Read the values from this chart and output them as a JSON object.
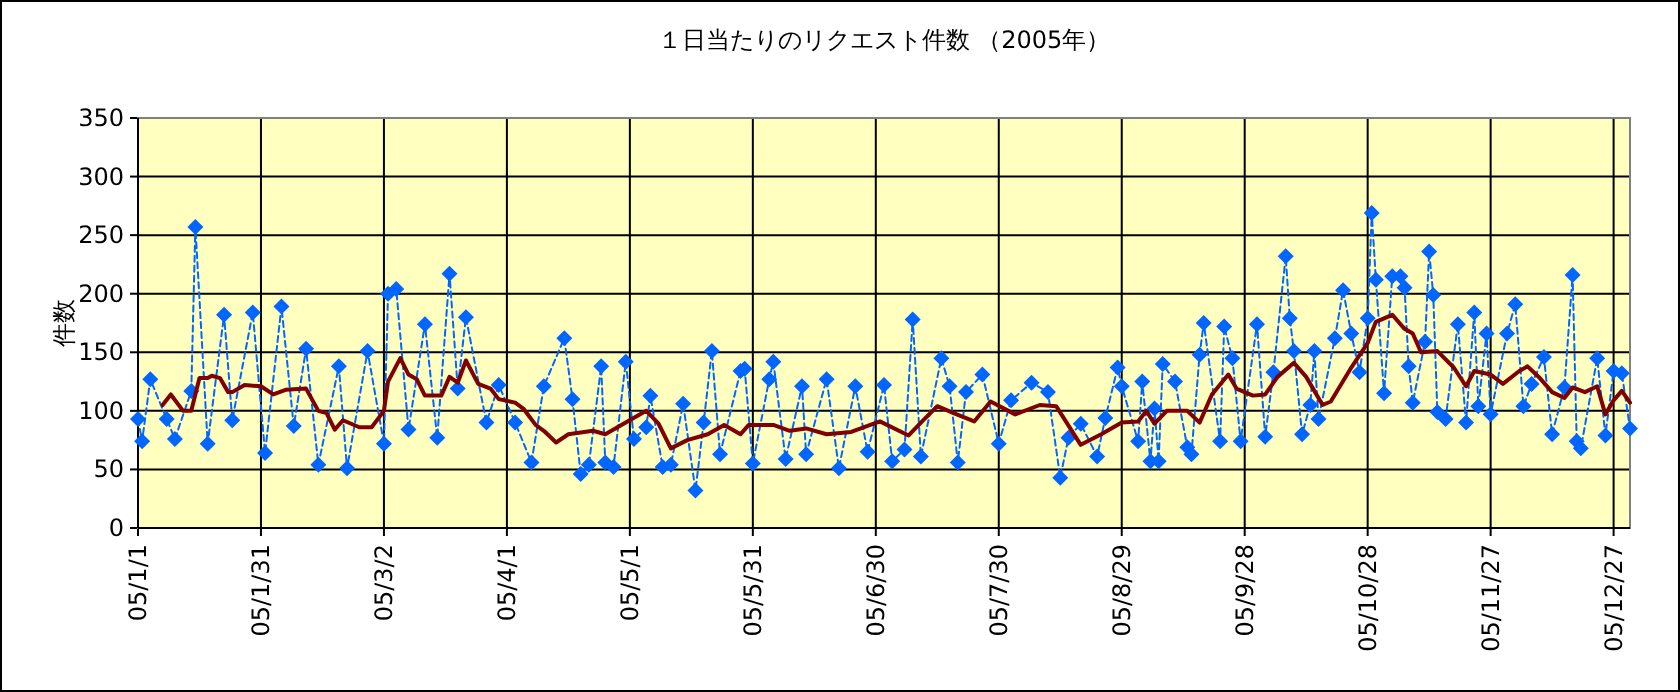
{
  "chart_data": {
    "type": "line",
    "title": "１日当たりのリクエスト件数 （2005年）",
    "ylabel": "件数",
    "xlim": [
      "2005-01-01",
      "2005-12-31"
    ],
    "xticks": [
      {
        "value": "2005-01-01",
        "label": "05/1/1"
      },
      {
        "value": "2005-01-31",
        "label": "05/1/31"
      },
      {
        "value": "2005-03-02",
        "label": "05/3/2"
      },
      {
        "value": "2005-04-01",
        "label": "05/4/1"
      },
      {
        "value": "2005-05-01",
        "label": "05/5/1"
      },
      {
        "value": "2005-05-31",
        "label": "05/5/31"
      },
      {
        "value": "2005-06-30",
        "label": "05/6/30"
      },
      {
        "value": "2005-07-30",
        "label": "05/7/30"
      },
      {
        "value": "2005-08-29",
        "label": "05/8/29"
      },
      {
        "value": "2005-09-28",
        "label": "05/9/28"
      },
      {
        "value": "2005-10-28",
        "label": "05/10/28"
      },
      {
        "value": "2005-11-27",
        "label": "05/11/27"
      },
      {
        "value": "2005-12-27",
        "label": "05/12/27"
      }
    ],
    "ylim": [
      0,
      350
    ],
    "yticks": [
      0,
      50,
      100,
      150,
      200,
      250,
      300,
      350
    ],
    "grid": true,
    "series": [
      {
        "color": "#0066ff",
        "marker": "diamond",
        "line_style": "dashed",
        "x": [
          "2005-01-01",
          "2005-01-02",
          "2005-01-04",
          "2005-01-08",
          "2005-01-10",
          "2005-01-14",
          "2005-01-15",
          "2005-01-18",
          "2005-01-22",
          "2005-01-24",
          "2005-01-29",
          "2005-02-01",
          "2005-02-05",
          "2005-02-08",
          "2005-02-11",
          "2005-02-14",
          "2005-02-19",
          "2005-02-21",
          "2005-02-26",
          "2005-03-02",
          "2005-03-03",
          "2005-03-05",
          "2005-03-08",
          "2005-03-12",
          "2005-03-15",
          "2005-03-18",
          "2005-03-20",
          "2005-03-22",
          "2005-03-27",
          "2005-03-30",
          "2005-04-03",
          "2005-04-07",
          "2005-04-10",
          "2005-04-15",
          "2005-04-17",
          "2005-04-19",
          "2005-04-21",
          "2005-04-24",
          "2005-04-25",
          "2005-04-27",
          "2005-04-30",
          "2005-05-02",
          "2005-05-05",
          "2005-05-06",
          "2005-05-09",
          "2005-05-11",
          "2005-05-14",
          "2005-05-17",
          "2005-05-19",
          "2005-05-21",
          "2005-05-23",
          "2005-05-28",
          "2005-05-29",
          "2005-05-31",
          "2005-06-04",
          "2005-06-05",
          "2005-06-08",
          "2005-06-12",
          "2005-06-13",
          "2005-06-18",
          "2005-06-21",
          "2005-06-25",
          "2005-06-28",
          "2005-07-02",
          "2005-07-04",
          "2005-07-07",
          "2005-07-09",
          "2005-07-11",
          "2005-07-16",
          "2005-07-18",
          "2005-07-20",
          "2005-07-22",
          "2005-07-26",
          "2005-07-30",
          "2005-08-02",
          "2005-08-07",
          "2005-08-11",
          "2005-08-14",
          "2005-08-16",
          "2005-08-19",
          "2005-08-23",
          "2005-08-25",
          "2005-08-28",
          "2005-08-29",
          "2005-09-02",
          "2005-09-03",
          "2005-09-05",
          "2005-09-06",
          "2005-09-07",
          "2005-09-08",
          "2005-09-11",
          "2005-09-14",
          "2005-09-15",
          "2005-09-17",
          "2005-09-18",
          "2005-09-22",
          "2005-09-23",
          "2005-09-25",
          "2005-09-27",
          "2005-10-01",
          "2005-10-03",
          "2005-10-05",
          "2005-10-08",
          "2005-10-09",
          "2005-10-10",
          "2005-10-12",
          "2005-10-14",
          "2005-10-15",
          "2005-10-16",
          "2005-10-20",
          "2005-10-22",
          "2005-10-24",
          "2005-10-26",
          "2005-10-28",
          "2005-10-29",
          "2005-10-30",
          "2005-11-01",
          "2005-11-03",
          "2005-11-05",
          "2005-11-06",
          "2005-11-07",
          "2005-11-08",
          "2005-11-11",
          "2005-11-12",
          "2005-11-13",
          "2005-11-14",
          "2005-11-16",
          "2005-11-19",
          "2005-11-21",
          "2005-11-23",
          "2005-11-24",
          "2005-11-26",
          "2005-11-27",
          "2005-12-01",
          "2005-12-03",
          "2005-12-05",
          "2005-12-07",
          "2005-12-10",
          "2005-12-12",
          "2005-12-15",
          "2005-12-17",
          "2005-12-18",
          "2005-12-19",
          "2005-12-23",
          "2005-12-25",
          "2005-12-27",
          "2005-12-29",
          "2005-12-31"
        ],
        "values": [
          93,
          74,
          127,
          93,
          76,
          117,
          257,
          72,
          182,
          92,
          184,
          64,
          189,
          87,
          153,
          54,
          138,
          51,
          151,
          72,
          200,
          204,
          84,
          174,
          77,
          217,
          119,
          180,
          90,
          122,
          90,
          56,
          121,
          162,
          110,
          46,
          54,
          138,
          56,
          52,
          142,
          76,
          86,
          113,
          52,
          54,
          106,
          32,
          90,
          151,
          63,
          134,
          136,
          55,
          127,
          142,
          59,
          121,
          63,
          127,
          51,
          121,
          65,
          122,
          57,
          67,
          178,
          61,
          145,
          121,
          56,
          116,
          131,
          72,
          109,
          124,
          116,
          43,
          77,
          89,
          61,
          94,
          137,
          121,
          74,
          125,
          57,
          102,
          57,
          140,
          125,
          69,
          63,
          148,
          175,
          74,
          172,
          145,
          74,
          174,
          78,
          133,
          232,
          179,
          151,
          80,
          105,
          151,
          93,
          162,
          203,
          166,
          133,
          179,
          269,
          212,
          115,
          215,
          215,
          205,
          138,
          107,
          159,
          236,
          199,
          99,
          93,
          174,
          90,
          184,
          104,
          166,
          97,
          166,
          191,
          104,
          123,
          146,
          80,
          120,
          216,
          74,
          68,
          145,
          79,
          134,
          132,
          85
        ]
      },
      {
        "color": "#800000",
        "marker": "none",
        "line_style": "solid",
        "x": [
          "2005-01-07",
          "2005-01-09",
          "2005-01-12",
          "2005-01-14",
          "2005-01-16",
          "2005-01-18",
          "2005-01-19",
          "2005-01-21",
          "2005-01-23",
          "2005-01-24",
          "2005-01-27",
          "2005-01-31",
          "2005-02-03",
          "2005-02-06",
          "2005-02-11",
          "2005-02-14",
          "2005-02-16",
          "2005-02-18",
          "2005-02-20",
          "2005-02-24",
          "2005-02-27",
          "2005-03-02",
          "2005-03-03",
          "2005-03-06",
          "2005-03-08",
          "2005-03-10",
          "2005-03-12",
          "2005-03-16",
          "2005-03-18",
          "2005-03-20",
          "2005-03-22",
          "2005-03-25",
          "2005-03-28",
          "2005-03-30",
          "2005-04-03",
          "2005-04-05",
          "2005-04-08",
          "2005-04-10",
          "2005-04-13",
          "2005-04-16",
          "2005-04-22",
          "2005-04-25",
          "2005-04-30",
          "2005-05-05",
          "2005-05-08",
          "2005-05-11",
          "2005-05-15",
          "2005-05-20",
          "2005-05-24",
          "2005-05-28",
          "2005-05-30",
          "2005-06-05",
          "2005-06-09",
          "2005-06-13",
          "2005-06-18",
          "2005-06-24",
          "2005-07-01",
          "2005-07-08",
          "2005-07-11",
          "2005-07-15",
          "2005-07-19",
          "2005-07-24",
          "2005-07-28",
          "2005-08-03",
          "2005-08-09",
          "2005-08-13",
          "2005-08-19",
          "2005-08-24",
          "2005-08-29",
          "2005-09-02",
          "2005-09-04",
          "2005-09-06",
          "2005-09-09",
          "2005-09-14",
          "2005-09-17",
          "2005-09-20",
          "2005-09-24",
          "2005-09-26",
          "2005-09-30",
          "2005-10-03",
          "2005-10-06",
          "2005-10-10",
          "2005-10-13",
          "2005-10-17",
          "2005-10-19",
          "2005-10-24",
          "2005-10-28",
          "2005-10-30",
          "2005-11-03",
          "2005-11-06",
          "2005-11-08",
          "2005-11-10",
          "2005-11-14",
          "2005-11-18",
          "2005-11-21",
          "2005-11-23",
          "2005-11-27",
          "2005-11-30",
          "2005-12-04",
          "2005-12-06",
          "2005-12-09",
          "2005-12-12",
          "2005-12-15",
          "2005-12-17",
          "2005-12-20",
          "2005-12-23",
          "2005-12-25",
          "2005-12-27",
          "2005-12-29",
          "2005-12-31"
        ],
        "values": [
          105,
          114,
          100,
          100,
          128,
          128,
          130,
          128,
          116,
          116,
          122,
          121,
          114,
          118,
          119,
          100,
          98,
          84,
          92,
          86,
          86,
          100,
          125,
          145,
          131,
          127,
          113,
          113,
          129,
          124,
          143,
          123,
          119,
          110,
          107,
          102,
          88,
          83,
          73,
          80,
          83,
          80,
          90,
          100,
          89,
          68,
          75,
          80,
          88,
          80,
          88,
          88,
          83,
          85,
          80,
          82,
          91,
          79,
          90,
          104,
          98,
          91,
          108,
          97,
          105,
          104,
          71,
          80,
          90,
          91,
          100,
          89,
          100,
          100,
          90,
          114,
          131,
          119,
          113,
          114,
          129,
          141,
          129,
          105,
          108,
          137,
          158,
          176,
          182,
          170,
          166,
          150,
          151,
          137,
          121,
          134,
          131,
          123,
          134,
          138,
          128,
          116,
          111,
          120,
          116,
          121,
          97,
          109,
          117,
          107
        ]
      }
    ]
  }
}
